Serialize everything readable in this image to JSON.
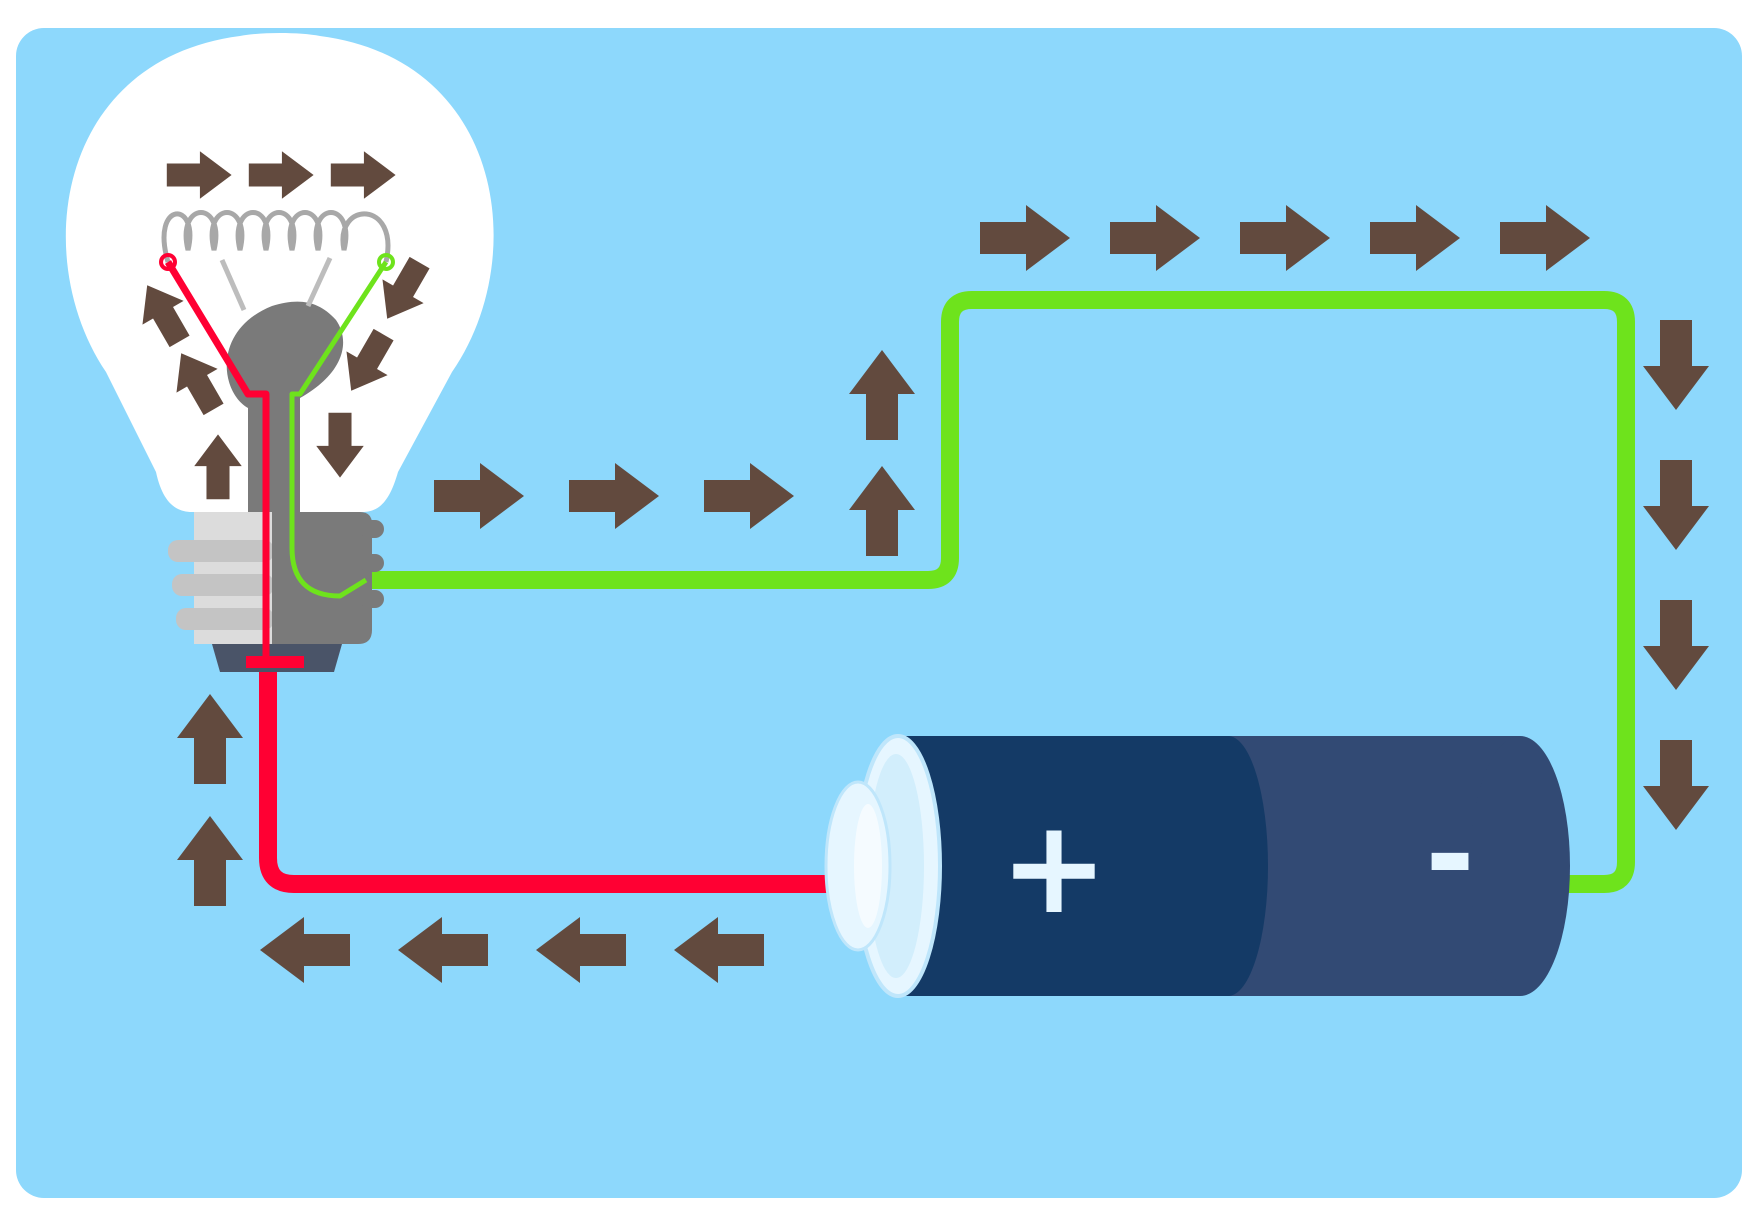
{
  "colors": {
    "background": "#8dd8fc",
    "page": "#ffffff",
    "arrow": "#624a3e",
    "wire_positive": "#ff0033",
    "wire_negative": "#6ee31c",
    "battery_positive_body": "#143a66",
    "battery_negative_body": "#324a74",
    "battery_cap": "#e6f6ff",
    "bulb_glass": "#ffffff",
    "bulb_metal": "#7a7a7a",
    "bulb_thread": "#c4c4c4",
    "filament": "#a8a8a8",
    "bulb_foot": "#4a5468"
  },
  "battery": {
    "positive_symbol": "+",
    "negative_symbol": "-"
  },
  "icons": [
    "arrow-icon",
    "light-bulb-icon",
    "battery-icon",
    "filament-icon"
  ],
  "current_direction": "clockwise"
}
